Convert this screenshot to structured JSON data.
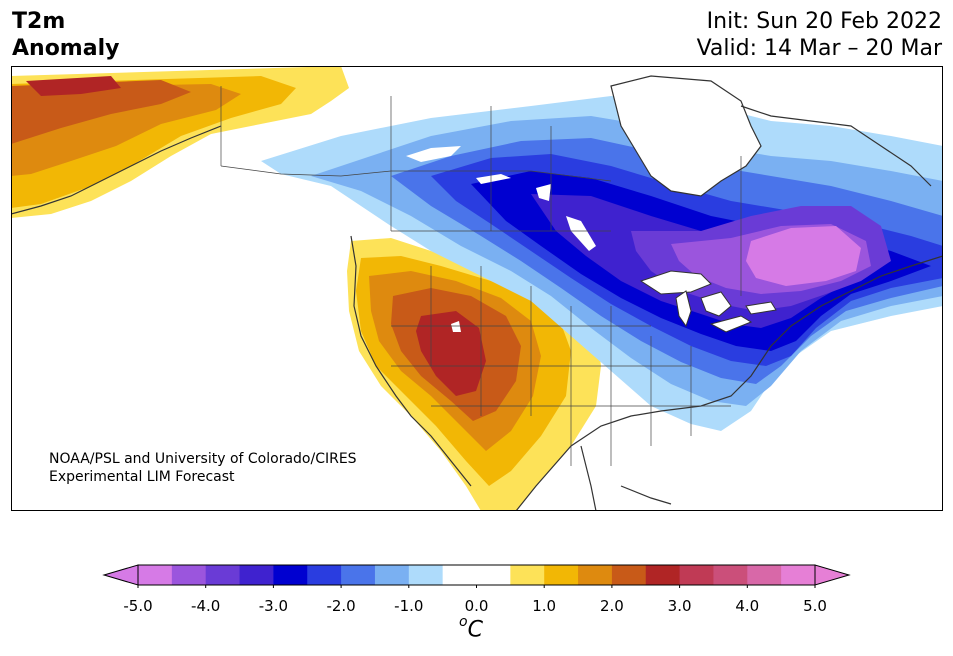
{
  "header": {
    "variable": "T2m",
    "subtitle": "Anomaly",
    "init": "Init: Sun 20 Feb 2022",
    "valid": "Valid: 14 Mar – 20 Mar"
  },
  "credit": {
    "line1": "NOAA/PSL and University of Colorado/CIRES",
    "line2": "Experimental LIM Forecast"
  },
  "colorbar": {
    "unit_base": "C",
    "unit_prefix": "o",
    "tick_labels": [
      "-5.0",
      "-4.0",
      "-3.0",
      "-2.0",
      "-1.0",
      "0.0",
      "1.0",
      "2.0",
      "3.0",
      "4.0",
      "5.0"
    ],
    "colors": [
      "#d67ae6",
      "#9b55dd",
      "#6a3bd6",
      "#3f22cf",
      "#0000d0",
      "#2a3de0",
      "#4a74ea",
      "#7ab0f2",
      "#aedbfb",
      "#ffffff",
      "#ffffff",
      "#fde258",
      "#f2b705",
      "#de8a0f",
      "#c85a18",
      "#b02525",
      "#c03a55",
      "#cb4f7a",
      "#d868a8",
      "#e67fd6"
    ]
  },
  "map": {
    "region": "North America",
    "features": [
      "cold anomaly over Great Lakes and Quebec",
      "warm anomaly over US Southwest",
      "warm anomaly over Alaska"
    ]
  }
}
